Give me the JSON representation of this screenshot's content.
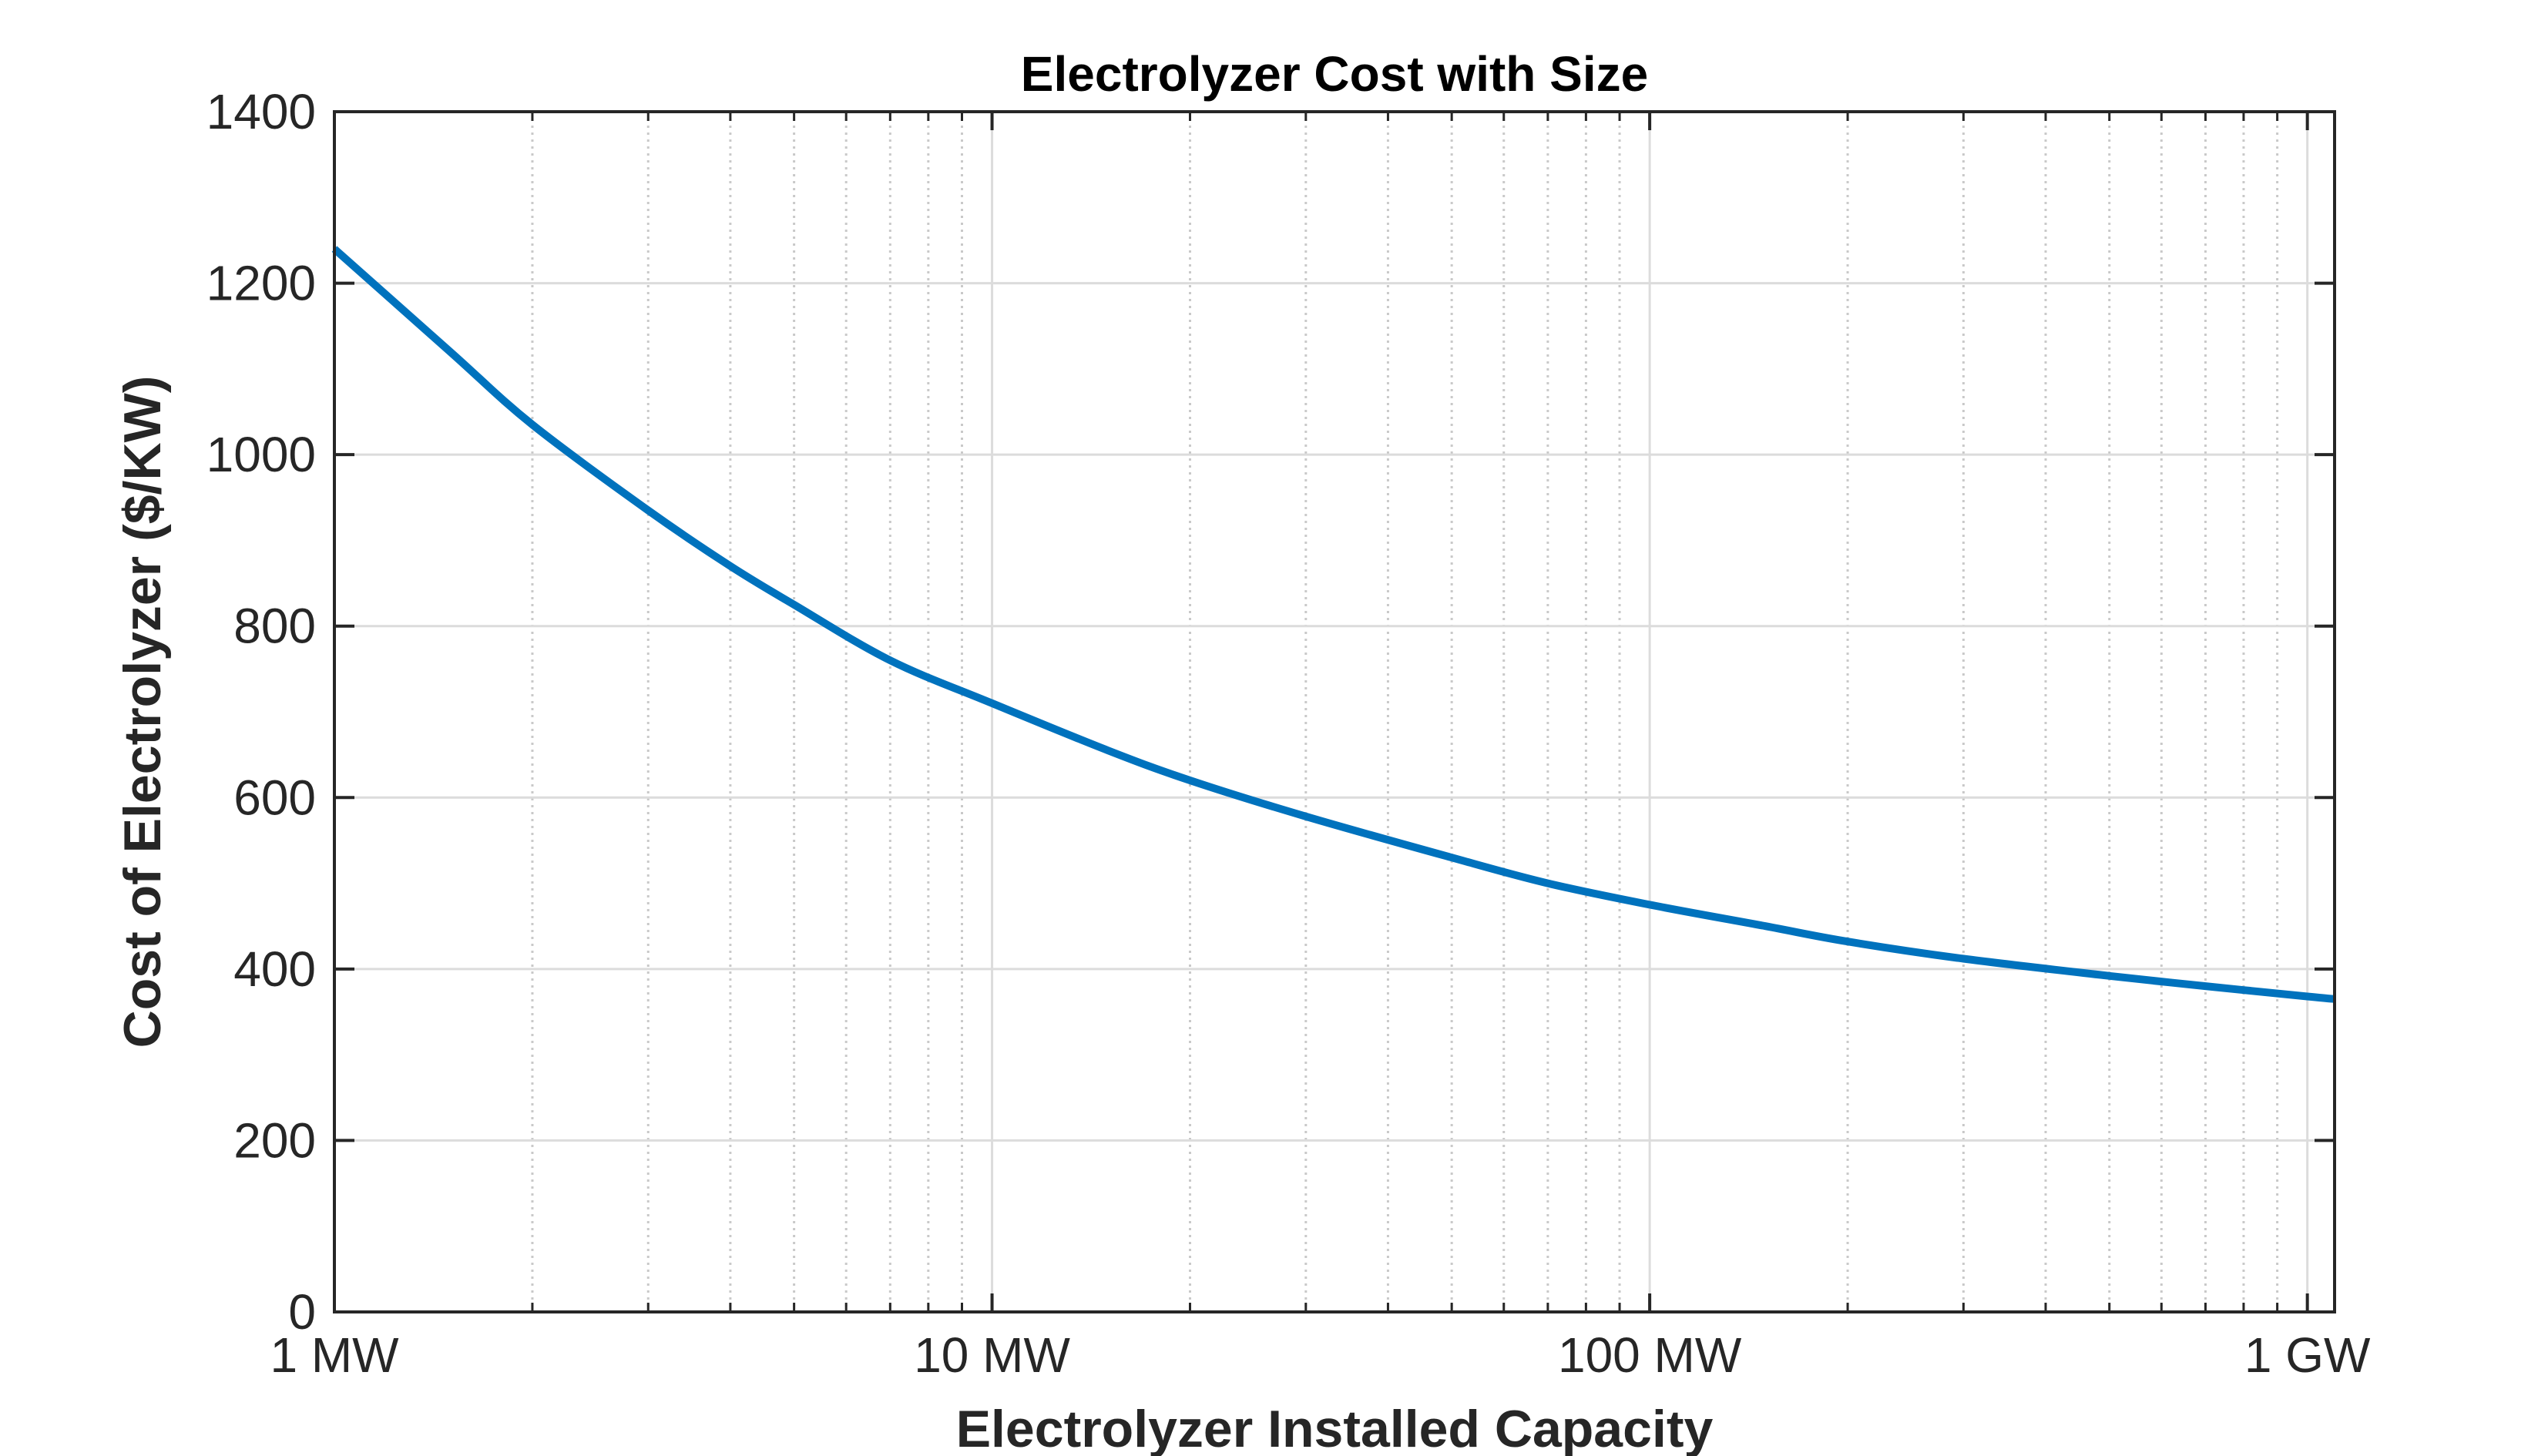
{
  "chart_data": {
    "type": "line",
    "title": "Electrolyzer Cost with Size",
    "xlabel": "Electrolyzer Installed Capacity",
    "ylabel": "Cost of Electrolyzer ($/KW)",
    "xscale": "log",
    "xlim": [
      1,
      1100
    ],
    "ylim": [
      0,
      1400
    ],
    "x_unit": "MW",
    "xticks": [
      {
        "value": 1,
        "label": "1 MW"
      },
      {
        "value": 10,
        "label": "10 MW"
      },
      {
        "value": 100,
        "label": "100 MW"
      },
      {
        "value": 1000,
        "label": "1 GW"
      }
    ],
    "yticks": [
      {
        "value": 0,
        "label": "0"
      },
      {
        "value": 200,
        "label": "200"
      },
      {
        "value": 400,
        "label": "400"
      },
      {
        "value": 600,
        "label": "600"
      },
      {
        "value": 800,
        "label": "800"
      },
      {
        "value": 1000,
        "label": "1000"
      },
      {
        "value": 1200,
        "label": "1200"
      },
      {
        "value": 1400,
        "label": "1400"
      }
    ],
    "grid": true,
    "minor_grid": true,
    "series": [
      {
        "color": "#0072BD",
        "x": [
          1,
          1.5,
          2,
          3,
          4,
          5,
          7,
          10,
          15,
          20,
          30,
          50,
          70,
          100,
          150,
          200,
          300,
          500,
          700,
          1000,
          1100
        ],
        "y": [
          1240,
          1120,
          1035,
          935,
          870,
          825,
          760,
          710,
          655,
          620,
          578,
          530,
          500,
          475,
          450,
          432,
          412,
          392,
          380,
          368,
          365
        ]
      }
    ]
  }
}
